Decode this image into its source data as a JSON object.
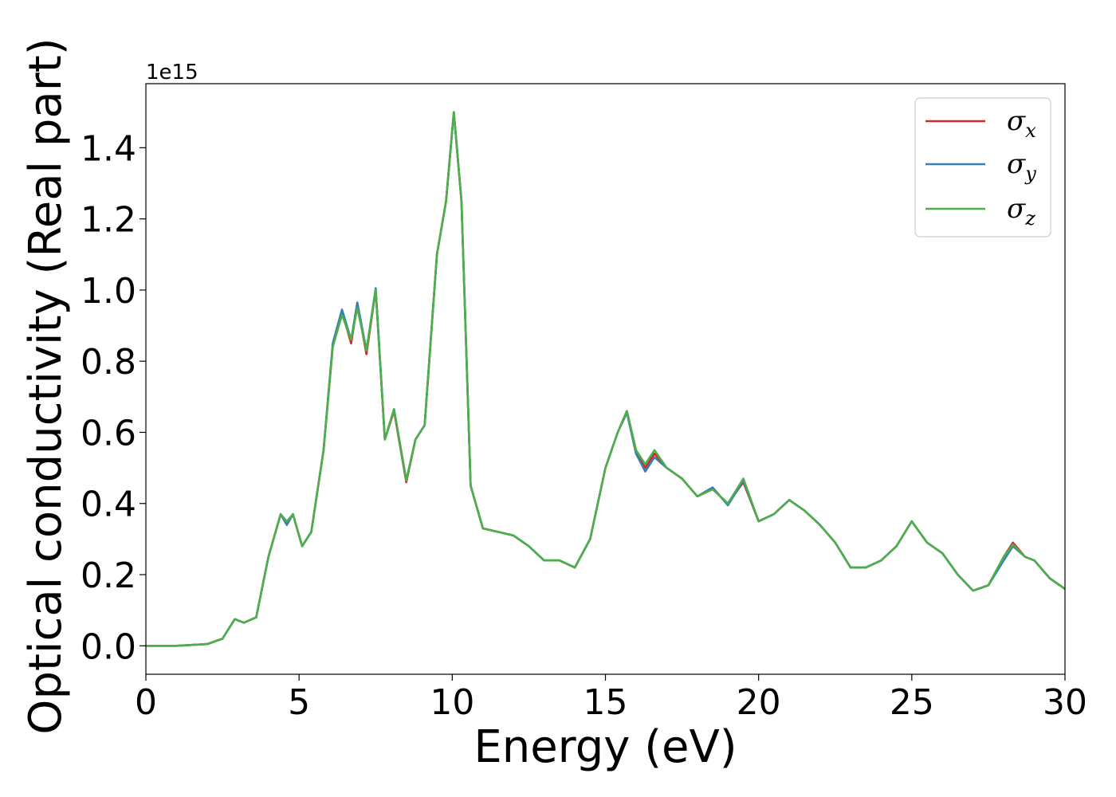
{
  "chart_data": {
    "type": "line",
    "xlabel": "Energy (eV)",
    "ylabel": "Optical conductivity (Real part)",
    "y_offset_label": "1e15",
    "xlim": [
      0,
      30
    ],
    "ylim": [
      -0.08,
      1.58
    ],
    "x_ticks": [
      0,
      5,
      10,
      15,
      20,
      25,
      30
    ],
    "x_tick_labels": [
      "0",
      "5",
      "10",
      "15",
      "20",
      "25",
      "30"
    ],
    "y_ticks": [
      0.0,
      0.2,
      0.4,
      0.6,
      0.8,
      1.0,
      1.2,
      1.4
    ],
    "y_tick_labels": [
      "0.0",
      "0.2",
      "0.4",
      "0.6",
      "0.8",
      "1.0",
      "1.2",
      "1.4"
    ],
    "grid": false,
    "legend_position": "top-right",
    "x": [
      0,
      1,
      2,
      2.5,
      2.9,
      3.2,
      3.6,
      4.0,
      4.4,
      4.6,
      4.8,
      5.1,
      5.4,
      5.8,
      6.1,
      6.4,
      6.7,
      6.9,
      7.2,
      7.5,
      7.8,
      8.1,
      8.5,
      8.8,
      9.1,
      9.5,
      9.8,
      10.05,
      10.3,
      10.6,
      11.0,
      11.5,
      12.0,
      12.5,
      13.0,
      13.5,
      14.0,
      14.5,
      15.0,
      15.4,
      15.7,
      16.0,
      16.3,
      16.6,
      17.0,
      17.5,
      18.0,
      18.5,
      19.0,
      19.5,
      20.0,
      20.5,
      21.0,
      21.5,
      22.0,
      22.5,
      23.0,
      23.5,
      24.0,
      24.5,
      25.0,
      25.5,
      26.0,
      26.5,
      27.0,
      27.5,
      28.0,
      28.3,
      28.7,
      29.0,
      29.5,
      30.0
    ],
    "series": [
      {
        "name": "σx",
        "color": "#d62728",
        "values": [
          0.0,
          0.0,
          0.005,
          0.02,
          0.075,
          0.065,
          0.08,
          0.25,
          0.37,
          0.34,
          0.37,
          0.28,
          0.32,
          0.55,
          0.84,
          0.94,
          0.85,
          0.96,
          0.82,
          1.0,
          0.58,
          0.66,
          0.46,
          0.58,
          0.62,
          1.1,
          1.25,
          1.5,
          1.25,
          0.45,
          0.33,
          0.32,
          0.31,
          0.28,
          0.24,
          0.24,
          0.22,
          0.3,
          0.5,
          0.6,
          0.66,
          0.55,
          0.5,
          0.54,
          0.5,
          0.47,
          0.42,
          0.44,
          0.4,
          0.46,
          0.35,
          0.37,
          0.41,
          0.38,
          0.34,
          0.29,
          0.22,
          0.22,
          0.24,
          0.28,
          0.35,
          0.29,
          0.26,
          0.2,
          0.155,
          0.17,
          0.25,
          0.29,
          0.25,
          0.24,
          0.19,
          0.16
        ]
      },
      {
        "name": "σy",
        "color": "#377eb8",
        "values": [
          0.0,
          0.0,
          0.005,
          0.02,
          0.075,
          0.065,
          0.08,
          0.25,
          0.37,
          0.34,
          0.37,
          0.28,
          0.32,
          0.55,
          0.85,
          0.945,
          0.86,
          0.965,
          0.83,
          1.005,
          0.58,
          0.665,
          0.465,
          0.58,
          0.62,
          1.1,
          1.25,
          1.5,
          1.25,
          0.45,
          0.33,
          0.32,
          0.31,
          0.28,
          0.24,
          0.24,
          0.22,
          0.3,
          0.5,
          0.6,
          0.655,
          0.54,
          0.49,
          0.53,
          0.5,
          0.47,
          0.42,
          0.445,
          0.395,
          0.465,
          0.35,
          0.37,
          0.41,
          0.38,
          0.34,
          0.29,
          0.22,
          0.22,
          0.24,
          0.28,
          0.35,
          0.29,
          0.26,
          0.2,
          0.155,
          0.17,
          0.24,
          0.28,
          0.25,
          0.24,
          0.19,
          0.16
        ]
      },
      {
        "name": "σz",
        "color": "#4daf4a",
        "values": [
          0.0,
          0.0,
          0.005,
          0.02,
          0.075,
          0.065,
          0.08,
          0.25,
          0.37,
          0.35,
          0.37,
          0.28,
          0.32,
          0.55,
          0.84,
          0.93,
          0.86,
          0.95,
          0.83,
          1.0,
          0.58,
          0.665,
          0.465,
          0.58,
          0.62,
          1.1,
          1.25,
          1.5,
          1.25,
          0.45,
          0.33,
          0.32,
          0.31,
          0.28,
          0.24,
          0.24,
          0.22,
          0.3,
          0.5,
          0.6,
          0.66,
          0.55,
          0.51,
          0.55,
          0.5,
          0.47,
          0.42,
          0.44,
          0.4,
          0.47,
          0.35,
          0.37,
          0.41,
          0.38,
          0.34,
          0.29,
          0.22,
          0.22,
          0.24,
          0.28,
          0.35,
          0.29,
          0.26,
          0.2,
          0.155,
          0.17,
          0.25,
          0.285,
          0.25,
          0.24,
          0.19,
          0.16
        ]
      }
    ]
  }
}
